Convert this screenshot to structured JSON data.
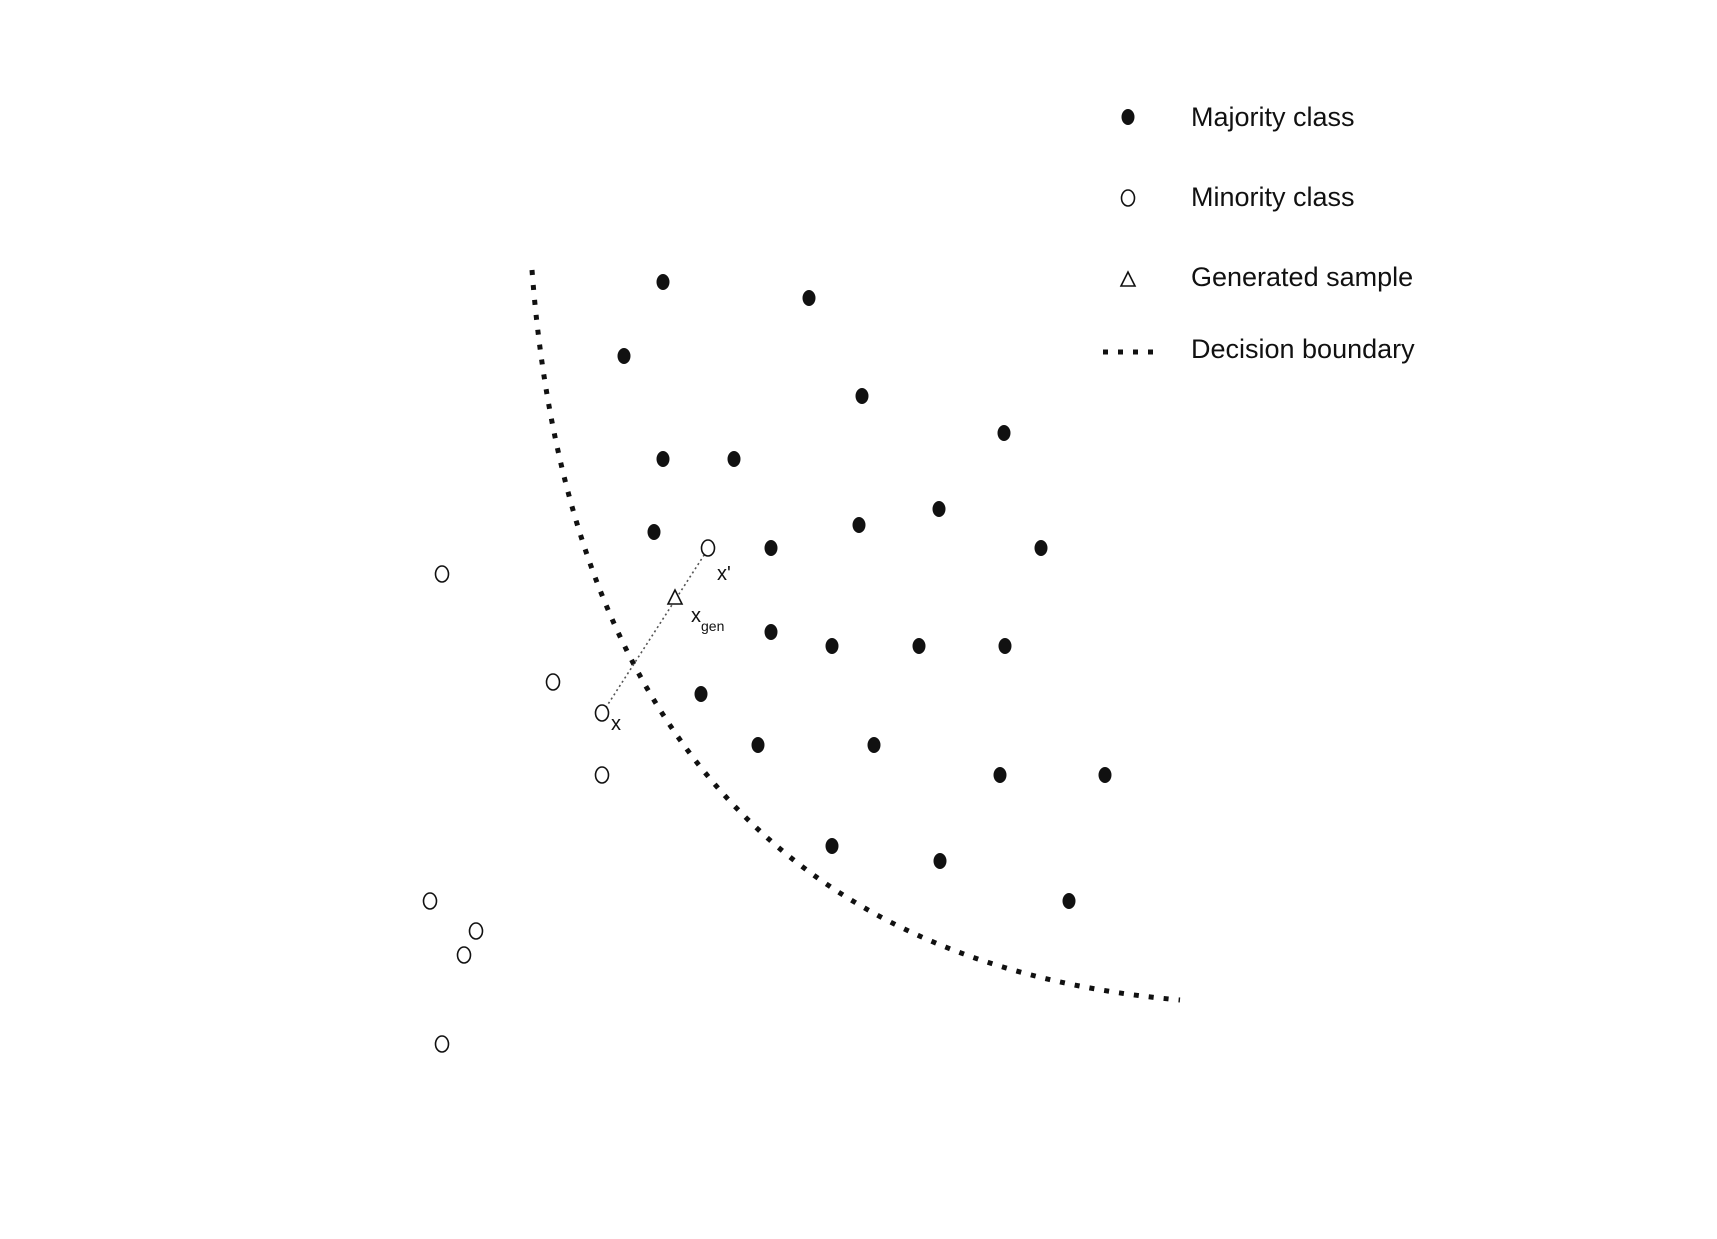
{
  "legend": {
    "majority_label": "Majority class",
    "minority_label": "Minority class",
    "generated_label": "Generated sample",
    "boundary_label": "Decision boundary"
  },
  "labels": {
    "x": "x",
    "x_prime": "x'",
    "x_gen_main": "x",
    "x_gen_sub": "gen"
  },
  "colors": {
    "ink": "#111111",
    "background": "#ffffff"
  }
}
